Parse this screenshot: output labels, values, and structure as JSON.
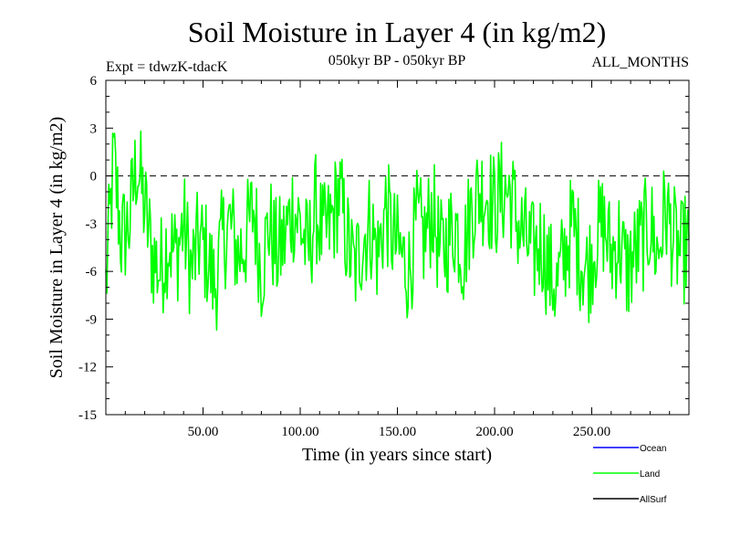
{
  "chart_data": {
    "type": "line",
    "title": "Soil Moisture in Layer 4 (in kg/m2)",
    "subtitle_left": "Expt = tdwzK-tdacK",
    "subtitle_center": "050kyr BP - 050kyr BP",
    "subtitle_right": "ALL_MONTHS",
    "xlabel": "Time (in years since start)",
    "ylabel": "Soil Moisture in Layer 4 (in kg/m2)",
    "xlim": [
      0,
      300
    ],
    "ylim": [
      -15,
      6
    ],
    "x_ticks": [
      50,
      100,
      150,
      200,
      250
    ],
    "x_tick_labels": [
      "50.00",
      "100.00",
      "150.00",
      "200.00",
      "250.00"
    ],
    "y_ticks": [
      6,
      3,
      0,
      -3,
      -6,
      -9,
      -12,
      -15
    ],
    "y_tick_labels": [
      "6",
      "3",
      "0",
      "-3",
      "-6",
      "-9",
      "-12",
      "-15"
    ],
    "zero_line": true,
    "legend_position": "bottom-right",
    "legend": [
      {
        "label": "Ocean",
        "color": "#0000ff"
      },
      {
        "label": "Land",
        "color": "#00ff00"
      },
      {
        "label": "AllSurf",
        "color": "#000000"
      }
    ],
    "series": [
      {
        "name": "Land",
        "color": "#00ff00",
        "x": [
          0,
          4,
          8,
          12,
          16,
          20,
          24,
          28,
          32,
          36,
          40,
          44,
          48,
          52,
          56,
          60,
          64,
          68,
          72,
          76,
          80,
          84,
          88,
          92,
          96,
          100,
          104,
          108,
          112,
          116,
          120,
          124,
          128,
          132,
          136,
          140,
          144,
          148,
          152,
          156,
          160,
          164,
          168,
          172,
          176,
          180,
          184,
          188,
          192,
          196,
          200,
          204,
          208,
          212,
          216,
          220,
          224,
          228,
          232,
          236,
          240,
          244,
          248,
          252,
          256,
          260,
          264,
          268,
          272,
          276,
          280,
          284,
          288,
          292,
          296,
          300
        ],
        "y": [
          -7,
          1,
          -4,
          -3,
          1,
          -2,
          -5,
          -6,
          -4,
          -5,
          -3,
          -6,
          -4,
          -5,
          -7,
          -4,
          -3,
          -5,
          -4,
          -2,
          -6,
          -3,
          -5,
          -4,
          -2,
          -3,
          -5,
          -2,
          -4,
          -3,
          -1,
          -4,
          -6,
          -4,
          -3,
          -5,
          -2,
          -4,
          -5,
          -6,
          -3,
          -4,
          -2,
          -5,
          -4,
          -3,
          -5,
          -2,
          -1,
          -1,
          -2,
          -1,
          -1,
          -3,
          -4,
          -5,
          -4,
          -6,
          -7,
          -5,
          -3,
          -5,
          -6,
          -4,
          -3,
          -5,
          -4,
          -6,
          -5,
          -4,
          -3,
          -5,
          -2,
          -4,
          -5,
          -4
        ]
      }
    ]
  }
}
